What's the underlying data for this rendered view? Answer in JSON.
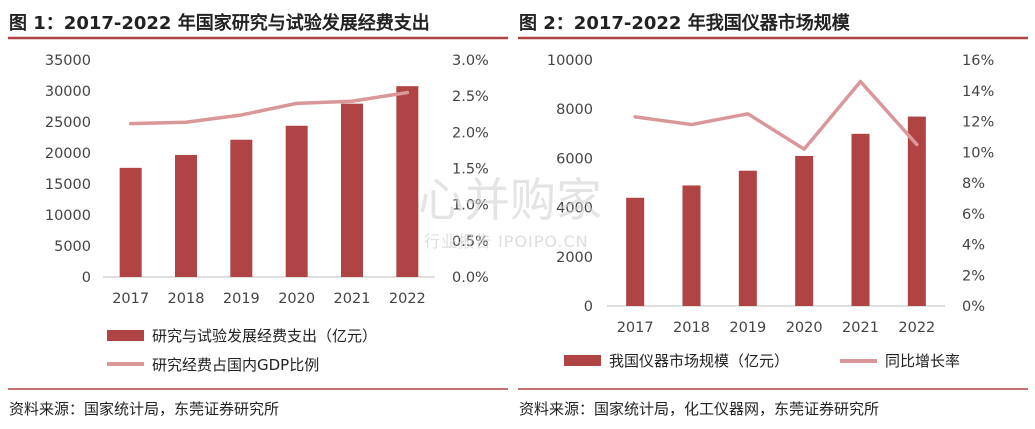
{
  "colors": {
    "bar": "#b04343",
    "line": "#d9979a",
    "rule": "#b04343",
    "axis": "#bfbfbf"
  },
  "watermark": {
    "main": "心并购家",
    "sub": "行业报告 IPOIPO.CN"
  },
  "chart_data": [
    {
      "type": "bar",
      "title": "图 1：2017-2022 年国家研究与试验发展经费支出",
      "categories": [
        "2017",
        "2018",
        "2019",
        "2020",
        "2021",
        "2022"
      ],
      "y_left_ticks": [
        "0",
        "5000",
        "10000",
        "15000",
        "20000",
        "25000",
        "30000",
        "35000"
      ],
      "y_right_ticks": [
        "0.0%",
        "0.5%",
        "1.0%",
        "1.5%",
        "2.0%",
        "2.5%",
        "3.0%"
      ],
      "ylim_left": [
        0,
        35000
      ],
      "ylim_right": [
        0,
        3.0
      ],
      "grid": false,
      "legend_position": "bottom",
      "series": [
        {
          "name": "研究与试验发展经费支出（亿元）",
          "kind": "bar",
          "axis": "left",
          "values": [
            17606,
            19678,
            22144,
            24393,
            27956,
            30783
          ]
        },
        {
          "name": "研究经费占国内GDP比例",
          "kind": "line",
          "axis": "right",
          "values": [
            2.12,
            2.14,
            2.24,
            2.4,
            2.43,
            2.55
          ]
        }
      ],
      "source": "资料来源：国家统计局，东莞证券研究所"
    },
    {
      "type": "bar",
      "title": "图 2：2017-2022 年我国仪器市场规模",
      "categories": [
        "2017",
        "2018",
        "2019",
        "2020",
        "2021",
        "2022"
      ],
      "y_left_ticks": [
        "0",
        "2000",
        "4000",
        "6000",
        "8000",
        "10000"
      ],
      "y_right_ticks": [
        "0%",
        "2%",
        "4%",
        "6%",
        "8%",
        "10%",
        "12%",
        "14%",
        "16%"
      ],
      "ylim_left": [
        0,
        10000
      ],
      "ylim_right": [
        0,
        16
      ],
      "grid": false,
      "legend_position": "bottom",
      "series": [
        {
          "name": "我国仪器市场规模（亿元）",
          "kind": "bar",
          "axis": "left",
          "values": [
            4400,
            4900,
            5500,
            6100,
            7000,
            7700
          ]
        },
        {
          "name": "同比增长率",
          "kind": "line",
          "axis": "right",
          "values": [
            12.3,
            11.8,
            12.5,
            10.2,
            14.6,
            10.5
          ]
        }
      ],
      "source": "资料来源：国家统计局，化工仪器网，东莞证券研究所"
    }
  ]
}
